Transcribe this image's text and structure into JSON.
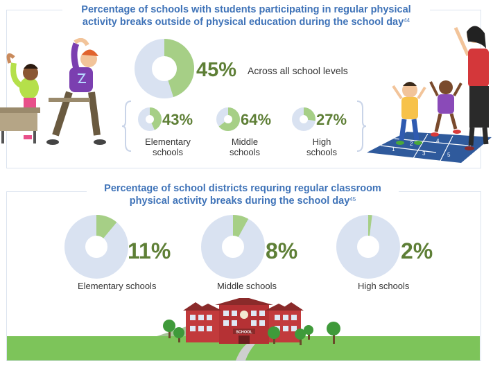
{
  "colors": {
    "donut_bg": "#d9e2f1",
    "donut_fg": "#a6cf86",
    "pct_text": "#5e7f36",
    "title_text": "#3f73b8",
    "lawn": "#7dc45a",
    "school_red": "#c23a3c"
  },
  "section1": {
    "title_line1": "Percentage of schools with students participating in regular physical",
    "title_line2": "activity breaks outside of physical education during the school day",
    "title_ref": "44",
    "main": {
      "value": 45,
      "text": "45%",
      "label": "Across all school levels"
    },
    "levels": [
      {
        "value": 43,
        "text": "43%",
        "label_line1": "Elementary",
        "label_line2": "schools"
      },
      {
        "value": 64,
        "text": "64%",
        "label_line1": "Middle",
        "label_line2": "schools"
      },
      {
        "value": 27,
        "text": "27%",
        "label_line1": "High",
        "label_line2": "schools"
      }
    ]
  },
  "section2": {
    "title_line1": "Percentage of school districts requring regular classroom",
    "title_line2": "physical activity breaks during the school day",
    "title_ref": "45",
    "items": [
      {
        "value": 11,
        "text": "11%",
        "label": "Elementary schools"
      },
      {
        "value": 8,
        "text": "8%",
        "label": "Middle schools"
      },
      {
        "value": 2,
        "text": "2%",
        "label": "High schools"
      }
    ]
  },
  "illustration": {
    "school_sign": "SCHOOL",
    "hopscotch_numbers": [
      "1",
      "2",
      "3",
      "4",
      "5",
      "6"
    ]
  }
}
